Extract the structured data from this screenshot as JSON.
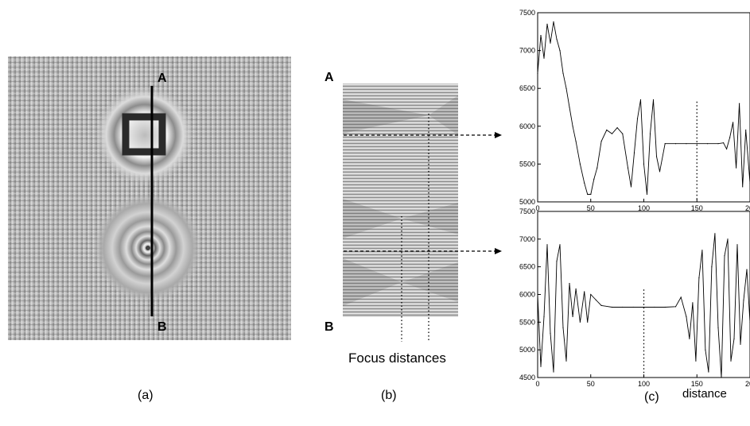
{
  "panel_a": {
    "marker_top": "A",
    "marker_bottom": "B",
    "caption": "(a)"
  },
  "panel_b": {
    "marker_top": "A",
    "marker_bottom": "B",
    "focus_label": "Focus distances",
    "caption": "(b)"
  },
  "panel_c": {
    "caption": "(c)",
    "xlabel": "distance"
  },
  "chart_data": [
    {
      "type": "line",
      "title": "",
      "xlabel": "",
      "ylabel": "",
      "xlim": [
        0,
        200
      ],
      "ylim": [
        5000,
        7500
      ],
      "x_ticks": [
        "0",
        "50",
        "100",
        "150",
        "20"
      ],
      "y_ticks": [
        "5000",
        "5500",
        "6000",
        "6500",
        "7000",
        "7500"
      ],
      "focus_marker_x": 150,
      "x": [
        0,
        3,
        6,
        9,
        12,
        15,
        18,
        21,
        24,
        27,
        30,
        33,
        36,
        40,
        44,
        47,
        50,
        53,
        56,
        60,
        65,
        70,
        75,
        80,
        85,
        88,
        91,
        94,
        97,
        100,
        103,
        106,
        109,
        112,
        115,
        120,
        130,
        140,
        150,
        160,
        170,
        175,
        178,
        181,
        184,
        187,
        190,
        193,
        196,
        200
      ],
      "values": [
        6700,
        7200,
        6900,
        7350,
        7100,
        7380,
        7150,
        7000,
        6700,
        6500,
        6250,
        6000,
        5800,
        5500,
        5250,
        5100,
        5100,
        5300,
        5450,
        5800,
        5950,
        5900,
        5980,
        5900,
        5450,
        5200,
        5650,
        6100,
        6350,
        5500,
        5100,
        5900,
        6350,
        5600,
        5400,
        5770,
        5770,
        5770,
        5770,
        5770,
        5770,
        5780,
        5700,
        5850,
        6050,
        5450,
        6300,
        5200,
        5950,
        5250
      ]
    },
    {
      "type": "line",
      "title": "",
      "xlabel": "distance",
      "ylabel": "",
      "xlim": [
        0,
        200
      ],
      "ylim": [
        4500,
        7500
      ],
      "x_ticks": [
        "0",
        "50",
        "100",
        "150",
        "20"
      ],
      "y_ticks": [
        "4500",
        "5000",
        "5500",
        "6000",
        "6500",
        "7000",
        "7500"
      ],
      "focus_marker_x": 100,
      "x": [
        0,
        3,
        6,
        9,
        12,
        15,
        18,
        21,
        24,
        27,
        30,
        33,
        36,
        40,
        44,
        47,
        50,
        55,
        60,
        70,
        80,
        90,
        100,
        110,
        120,
        130,
        135,
        140,
        143,
        146,
        149,
        152,
        155,
        158,
        161,
        164,
        167,
        170,
        173,
        176,
        179,
        182,
        185,
        188,
        191,
        194,
        197,
        200
      ],
      "values": [
        6000,
        4700,
        5600,
        6900,
        5300,
        4600,
        6600,
        6900,
        5400,
        4800,
        6200,
        5600,
        6100,
        5500,
        6050,
        5500,
        6000,
        5900,
        5800,
        5770,
        5770,
        5770,
        5770,
        5770,
        5770,
        5780,
        5950,
        5600,
        5200,
        5850,
        4800,
        6300,
        6800,
        5000,
        4600,
        6500,
        7100,
        5400,
        4500,
        6700,
        7000,
        4800,
        5200,
        6900,
        5100,
        5900,
        6450,
        5500
      ]
    }
  ]
}
